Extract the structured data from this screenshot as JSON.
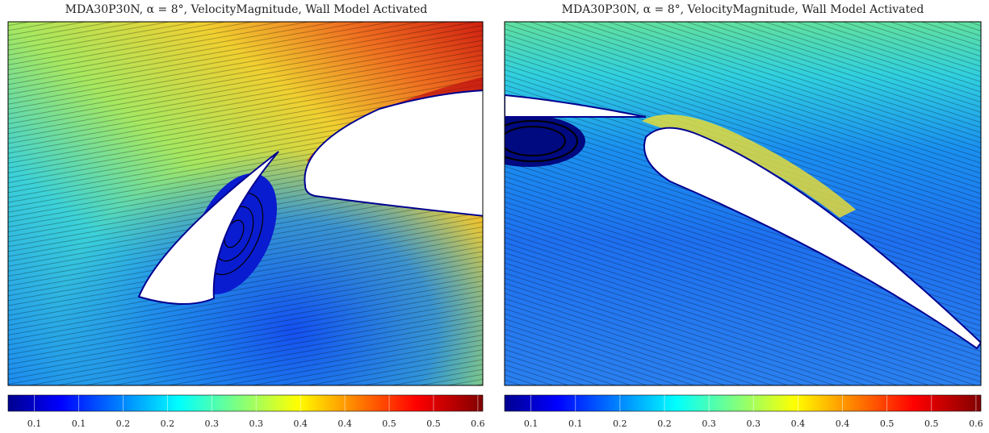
{
  "chart_data": [
    {
      "type": "contour",
      "title": "MDA30P30N, α = 8°, VelocityMagnitude, Wall Model Activated",
      "clim": [
        0.022,
        0.6
      ],
      "cticks": [
        {
          "value": 0.054,
          "label": "0.1"
        },
        {
          "value": 0.108,
          "label": "0.1"
        },
        {
          "value": 0.162,
          "label": "0.2"
        },
        {
          "value": 0.216,
          "label": "0.2"
        },
        {
          "value": 0.27,
          "label": "0.3"
        },
        {
          "value": 0.324,
          "label": "0.3"
        },
        {
          "value": 0.378,
          "label": "0.4"
        },
        {
          "value": 0.432,
          "label": "0.4"
        },
        {
          "value": 0.486,
          "label": "0.5"
        },
        {
          "value": 0.54,
          "label": "0.5"
        },
        {
          "value": 0.594,
          "label": "0.6"
        }
      ]
    },
    {
      "type": "contour",
      "title": "MDA30P30N, α = 8°, VelocityMagnitude, Wall Model Activated",
      "clim": [
        0.022,
        0.6
      ],
      "cticks": [
        {
          "value": 0.054,
          "label": "0.1"
        },
        {
          "value": 0.108,
          "label": "0.1"
        },
        {
          "value": 0.162,
          "label": "0.2"
        },
        {
          "value": 0.216,
          "label": "0.2"
        },
        {
          "value": 0.27,
          "label": "0.3"
        },
        {
          "value": 0.324,
          "label": "0.3"
        },
        {
          "value": 0.378,
          "label": "0.4"
        },
        {
          "value": 0.432,
          "label": "0.4"
        },
        {
          "value": 0.486,
          "label": "0.5"
        },
        {
          "value": 0.54,
          "label": "0.5"
        },
        {
          "value": 0.594,
          "label": "0.6"
        }
      ]
    }
  ]
}
